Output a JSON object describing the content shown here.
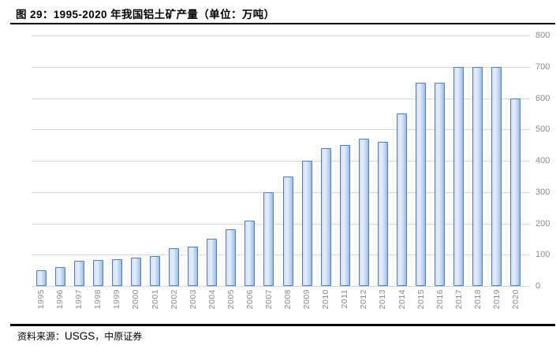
{
  "figure": {
    "title": "图 29：1995-2020 年我国铝土矿产量（单位：万吨）",
    "source_label": "资料来源：",
    "source_name": "USGS",
    "source_rest": "，中原证券"
  },
  "colors": {
    "bar_border": "#4f7dbd",
    "bar_fill_light": "#e6effc",
    "bar_fill_dark": "#9cbde8",
    "gridline": "#d9d9d9",
    "axis_label": "#8c8c8c",
    "rule": "#000000"
  },
  "chart_data": {
    "type": "bar",
    "title": "1995-2020 年我国铝土矿产量（单位：万吨）",
    "categories": [
      "1995",
      "1996",
      "1997",
      "1998",
      "1999",
      "2000",
      "2001",
      "2002",
      "2003",
      "2004",
      "2005",
      "2006",
      "2007",
      "2008",
      "2009",
      "2010",
      "2011",
      "2012",
      "2013",
      "2014",
      "2015",
      "2016",
      "2017",
      "2018",
      "2019",
      "2020"
    ],
    "values": [
      50,
      60,
      80,
      82,
      85,
      90,
      95,
      120,
      125,
      150,
      180,
      210,
      300,
      350,
      400,
      440,
      450,
      470,
      460,
      550,
      650,
      650,
      700,
      700,
      700,
      600
    ],
    "xlabel": "",
    "ylabel": "",
    "ylim": [
      0,
      800
    ],
    "yticks": [
      0,
      100,
      200,
      300,
      400,
      500,
      600,
      700,
      800
    ],
    "grid": true,
    "axis_side": "right",
    "legend": false
  }
}
